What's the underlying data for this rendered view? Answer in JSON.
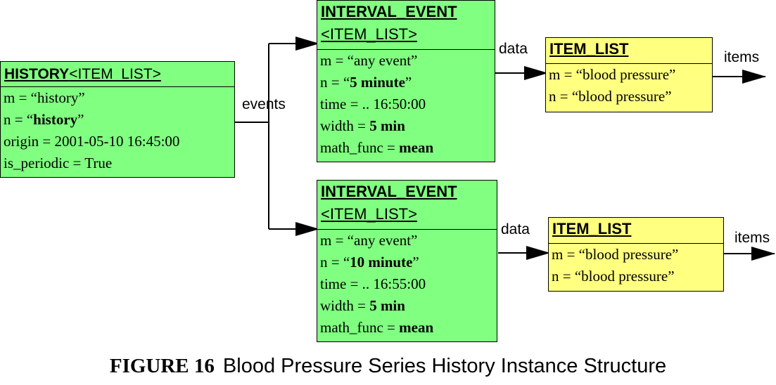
{
  "history": {
    "title_bold": "HISTORY",
    "title_param": "<ITEM_LIST>",
    "attrs": [
      {
        "pre": "m = “history”",
        "bold": "",
        "post": ""
      },
      {
        "pre": "n = “",
        "bold": "history",
        "post": "”"
      },
      {
        "pre": "origin = 2001-05-10 16:45:00",
        "bold": "",
        "post": ""
      },
      {
        "pre": "is_periodic = True",
        "bold": "",
        "post": ""
      }
    ]
  },
  "events_label": "events",
  "event1": {
    "title": "INTERVAL_EVENT",
    "param": "<ITEM_LIST>",
    "attrs": [
      {
        "pre": "m = “any event”",
        "bold": "",
        "post": ""
      },
      {
        "pre": "n = “",
        "bold": "5 minute",
        "post": "”"
      },
      {
        "pre": "time = .. 16:50:00",
        "bold": "",
        "post": ""
      },
      {
        "pre": "width = ",
        "bold": "5 min",
        "post": ""
      },
      {
        "pre": "math_func = ",
        "bold": "mean",
        "post": ""
      }
    ]
  },
  "event2": {
    "title": "INTERVAL_EVENT",
    "param": "<ITEM_LIST>",
    "attrs": [
      {
        "pre": "m = “any event”",
        "bold": "",
        "post": ""
      },
      {
        "pre": "n = “",
        "bold": "10 minute",
        "post": "”"
      },
      {
        "pre": "time = .. 16:55:00",
        "bold": "",
        "post": ""
      },
      {
        "pre": "width = ",
        "bold": "5 min",
        "post": ""
      },
      {
        "pre": "math_func = ",
        "bold": "mean",
        "post": ""
      }
    ]
  },
  "data_label_1": "data",
  "data_label_2": "data",
  "items_label_1": "items",
  "items_label_2": "items",
  "item_list1": {
    "title": "ITEM_LIST",
    "attrs": [
      {
        "pre": "m = “blood pressure”",
        "bold": "",
        "post": ""
      },
      {
        "pre": "n = “blood pressure”",
        "bold": "",
        "post": ""
      }
    ]
  },
  "item_list2": {
    "title": "ITEM_LIST",
    "attrs": [
      {
        "pre": "m = “blood pressure”",
        "bold": "",
        "post": ""
      },
      {
        "pre": "n = “blood pressure”",
        "bold": "",
        "post": ""
      }
    ]
  },
  "caption": {
    "figure": "FIGURE 16",
    "text": "Blood Pressure Series History Instance Structure"
  }
}
